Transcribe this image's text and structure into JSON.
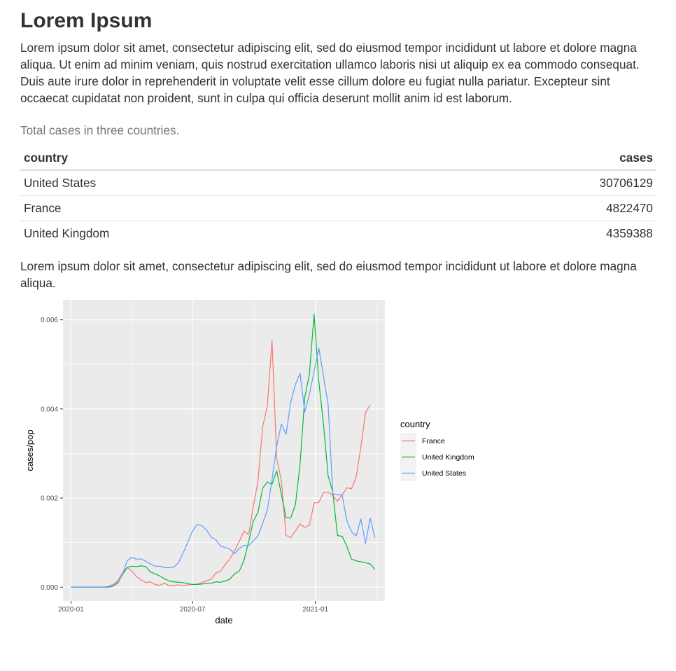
{
  "page": {
    "title": "Lorem Ipsum",
    "intro": "Lorem ipsum dolor sit amet, consectetur adipiscing elit, sed do eiusmod tempor incididunt ut labore et dolore magna aliqua. Ut enim ad minim veniam, quis nostrud exercitation ullamco laboris nisi ut aliquip ex ea commodo consequat. Duis aute irure dolor in reprehenderit in voluptate velit esse cillum dolore eu fugiat nulla pariatur. Excepteur sint occaecat cupidatat non proident, sunt in culpa qui officia deserunt mollit anim id est laborum.",
    "table_caption": "Total cases in three countries.",
    "table": {
      "headers": [
        "country",
        "cases"
      ],
      "rows": [
        [
          "United States",
          "30706129"
        ],
        [
          "France",
          "4822470"
        ],
        [
          "United Kingdom",
          "4359388"
        ]
      ]
    },
    "para2": "Lorem ipsum dolor sit amet, consectetur adipiscing elit, sed do eiusmod tempor incididunt ut labore et dolore magna aliqua."
  },
  "chart_data": {
    "type": "line",
    "xlabel": "date",
    "ylabel": "cases/pop",
    "x_ticks": [
      "2020-01",
      "2020-07",
      "2021-01"
    ],
    "y_ticks": [
      "0.000",
      "0.002",
      "0.004",
      "0.006"
    ],
    "xlim": [
      "2019-12-20",
      "2021-04-15"
    ],
    "ylim": [
      -0.00031,
      0.00645
    ],
    "legend": {
      "title": "country",
      "position": "right"
    },
    "x": [
      "2020-01-01",
      "2020-01-08",
      "2020-01-15",
      "2020-01-22",
      "2020-01-29",
      "2020-02-05",
      "2020-02-12",
      "2020-02-19",
      "2020-02-26",
      "2020-03-04",
      "2020-03-11",
      "2020-03-18",
      "2020-03-25",
      "2020-04-01",
      "2020-04-08",
      "2020-04-15",
      "2020-04-22",
      "2020-04-29",
      "2020-05-06",
      "2020-05-13",
      "2020-05-20",
      "2020-05-27",
      "2020-06-03",
      "2020-06-10",
      "2020-06-17",
      "2020-06-24",
      "2020-07-01",
      "2020-07-08",
      "2020-07-15",
      "2020-07-22",
      "2020-07-29",
      "2020-08-05",
      "2020-08-12",
      "2020-08-19",
      "2020-08-26",
      "2020-09-02",
      "2020-09-09",
      "2020-09-16",
      "2020-09-23",
      "2020-09-30",
      "2020-10-07",
      "2020-10-14",
      "2020-10-21",
      "2020-10-28",
      "2020-11-04",
      "2020-11-11",
      "2020-11-18",
      "2020-11-25",
      "2020-12-02",
      "2020-12-09",
      "2020-12-16",
      "2020-12-23",
      "2020-12-30",
      "2021-01-06",
      "2021-01-13",
      "2021-01-20",
      "2021-01-27",
      "2021-02-03",
      "2021-02-10",
      "2021-02-17",
      "2021-02-24",
      "2021-03-03",
      "2021-03-10",
      "2021-03-17",
      "2021-03-24",
      "2021-03-31",
      "2021-04-07"
    ],
    "series": [
      {
        "name": "France",
        "color": "#F8766D",
        "values": [
          0,
          0,
          0,
          0,
          0,
          0,
          0,
          0,
          2e-05,
          6e-05,
          0.00014,
          0.00032,
          0.00044,
          0.00036,
          0.00024,
          0.00016,
          0.0001,
          0.00012,
          6e-05,
          4e-05,
          9e-05,
          3e-05,
          4e-05,
          5e-05,
          4e-05,
          5e-05,
          6e-05,
          7e-05,
          0.0001,
          0.00014,
          0.00018,
          0.00032,
          0.00036,
          0.00051,
          0.00064,
          0.00082,
          0.00103,
          0.00126,
          0.00118,
          0.00181,
          0.00238,
          0.0036,
          0.00407,
          0.00553,
          0.00289,
          0.00239,
          0.00116,
          0.00111,
          0.00126,
          0.00142,
          0.00134,
          0.00139,
          0.00189,
          0.0019,
          0.00212,
          0.00213,
          0.00206,
          0.00193,
          0.00207,
          0.00223,
          0.00221,
          0.00247,
          0.00314,
          0.00392,
          0.00409,
          null,
          null
        ]
      },
      {
        "name": "United Kingdom",
        "color": "#00BA38",
        "values": [
          0,
          0,
          0,
          0,
          0,
          0,
          0,
          0,
          0,
          2e-05,
          9e-05,
          0.00028,
          0.00044,
          0.00047,
          0.00046,
          0.00048,
          0.00046,
          0.00034,
          0.0003,
          0.00025,
          0.00019,
          0.00014,
          0.00012,
          0.00011,
          0.0001,
          8e-05,
          6e-05,
          6e-05,
          7e-05,
          8e-05,
          9e-05,
          0.00012,
          0.00011,
          0.00014,
          0.00018,
          0.0003,
          0.00036,
          0.0006,
          0.00102,
          0.00148,
          0.00168,
          0.00222,
          0.00236,
          0.00231,
          0.00261,
          0.00208,
          0.00156,
          0.00155,
          0.00185,
          0.00276,
          0.00426,
          0.00478,
          0.00613,
          0.00462,
          0.00367,
          0.0025,
          0.00213,
          0.00116,
          0.00114,
          0.00092,
          0.00063,
          0.00059,
          0.00057,
          0.00055,
          0.00052,
          0.0004,
          null
        ]
      },
      {
        "name": "United States",
        "color": "#619CFF",
        "values": [
          0,
          0,
          0,
          0,
          0,
          0,
          0,
          0,
          1e-05,
          3e-05,
          0.00011,
          0.00027,
          0.00059,
          0.00067,
          0.00063,
          0.00063,
          0.00058,
          0.00052,
          0.00047,
          0.00047,
          0.00044,
          0.00044,
          0.00045,
          0.00055,
          0.00077,
          0.00101,
          0.00126,
          0.00141,
          0.00138,
          0.00128,
          0.00112,
          0.00106,
          0.00092,
          0.00089,
          0.00085,
          0.00075,
          0.00087,
          0.00094,
          0.00093,
          0.00104,
          0.00115,
          0.00143,
          0.00173,
          0.00241,
          0.00317,
          0.00366,
          0.00343,
          0.00415,
          0.00455,
          0.0048,
          0.00393,
          0.00433,
          0.00484,
          0.00537,
          0.00474,
          0.0041,
          0.0021,
          0.00207,
          0.00207,
          0.0015,
          0.00124,
          0.00115,
          0.00153,
          0.00098,
          0.00155,
          0.00111,
          null
        ]
      }
    ]
  }
}
